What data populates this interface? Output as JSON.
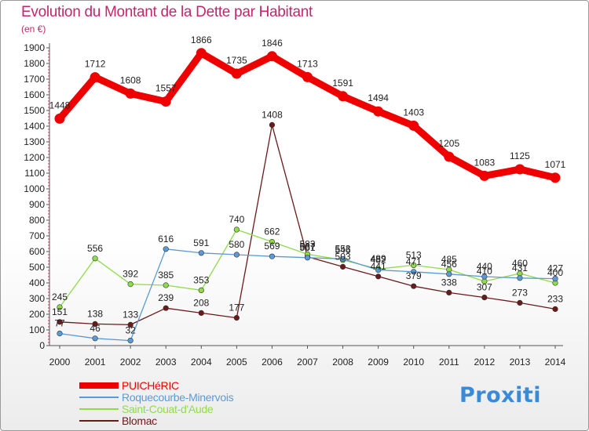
{
  "chart_data": {
    "type": "line",
    "title": "Evolution du Montant de la Dette par Habitant",
    "unit_label": "(en €)",
    "xlabel": "",
    "ylabel": "",
    "categories": [
      "2000",
      "2001",
      "2002",
      "2003",
      "2004",
      "2005",
      "2006",
      "2007",
      "2008",
      "2009",
      "2010",
      "2011",
      "2012",
      "2013",
      "2014"
    ],
    "ylim": [
      0,
      1900
    ],
    "yticks": [
      0,
      100,
      200,
      300,
      400,
      500,
      600,
      700,
      800,
      900,
      1000,
      1100,
      1200,
      1300,
      1400,
      1500,
      1600,
      1700,
      1800,
      1900
    ],
    "grid": false,
    "legend_position": "bottom-left",
    "series": [
      {
        "name": "PUICHéRIC",
        "color": "#ee0000",
        "values": [
          1448,
          1712,
          1608,
          1557,
          1866,
          1735,
          1846,
          1713,
          1591,
          1494,
          1403,
          1205,
          1083,
          1125,
          1071
        ]
      },
      {
        "name": "Roquecourbe-Minervois",
        "color": "#5b9bd5",
        "values": [
          77,
          46,
          32,
          616,
          591,
          580,
          569,
          561,
          553,
          482,
          471,
          456,
          440,
          431,
          427
        ]
      },
      {
        "name": "Saint-Couat-d'Aude",
        "color": "#8edc4a",
        "values": [
          245,
          556,
          392,
          385,
          353,
          740,
          662,
          583,
          546,
          489,
          513,
          485,
          410,
          460,
          400
        ]
      },
      {
        "name": "Blomac",
        "color": "#6b1a1a",
        "values": [
          151,
          138,
          133,
          239,
          208,
          177,
          1408,
          567,
          503,
          441,
          379,
          338,
          307,
          273,
          233
        ]
      }
    ]
  },
  "logo": {
    "text": "Proxiti"
  }
}
